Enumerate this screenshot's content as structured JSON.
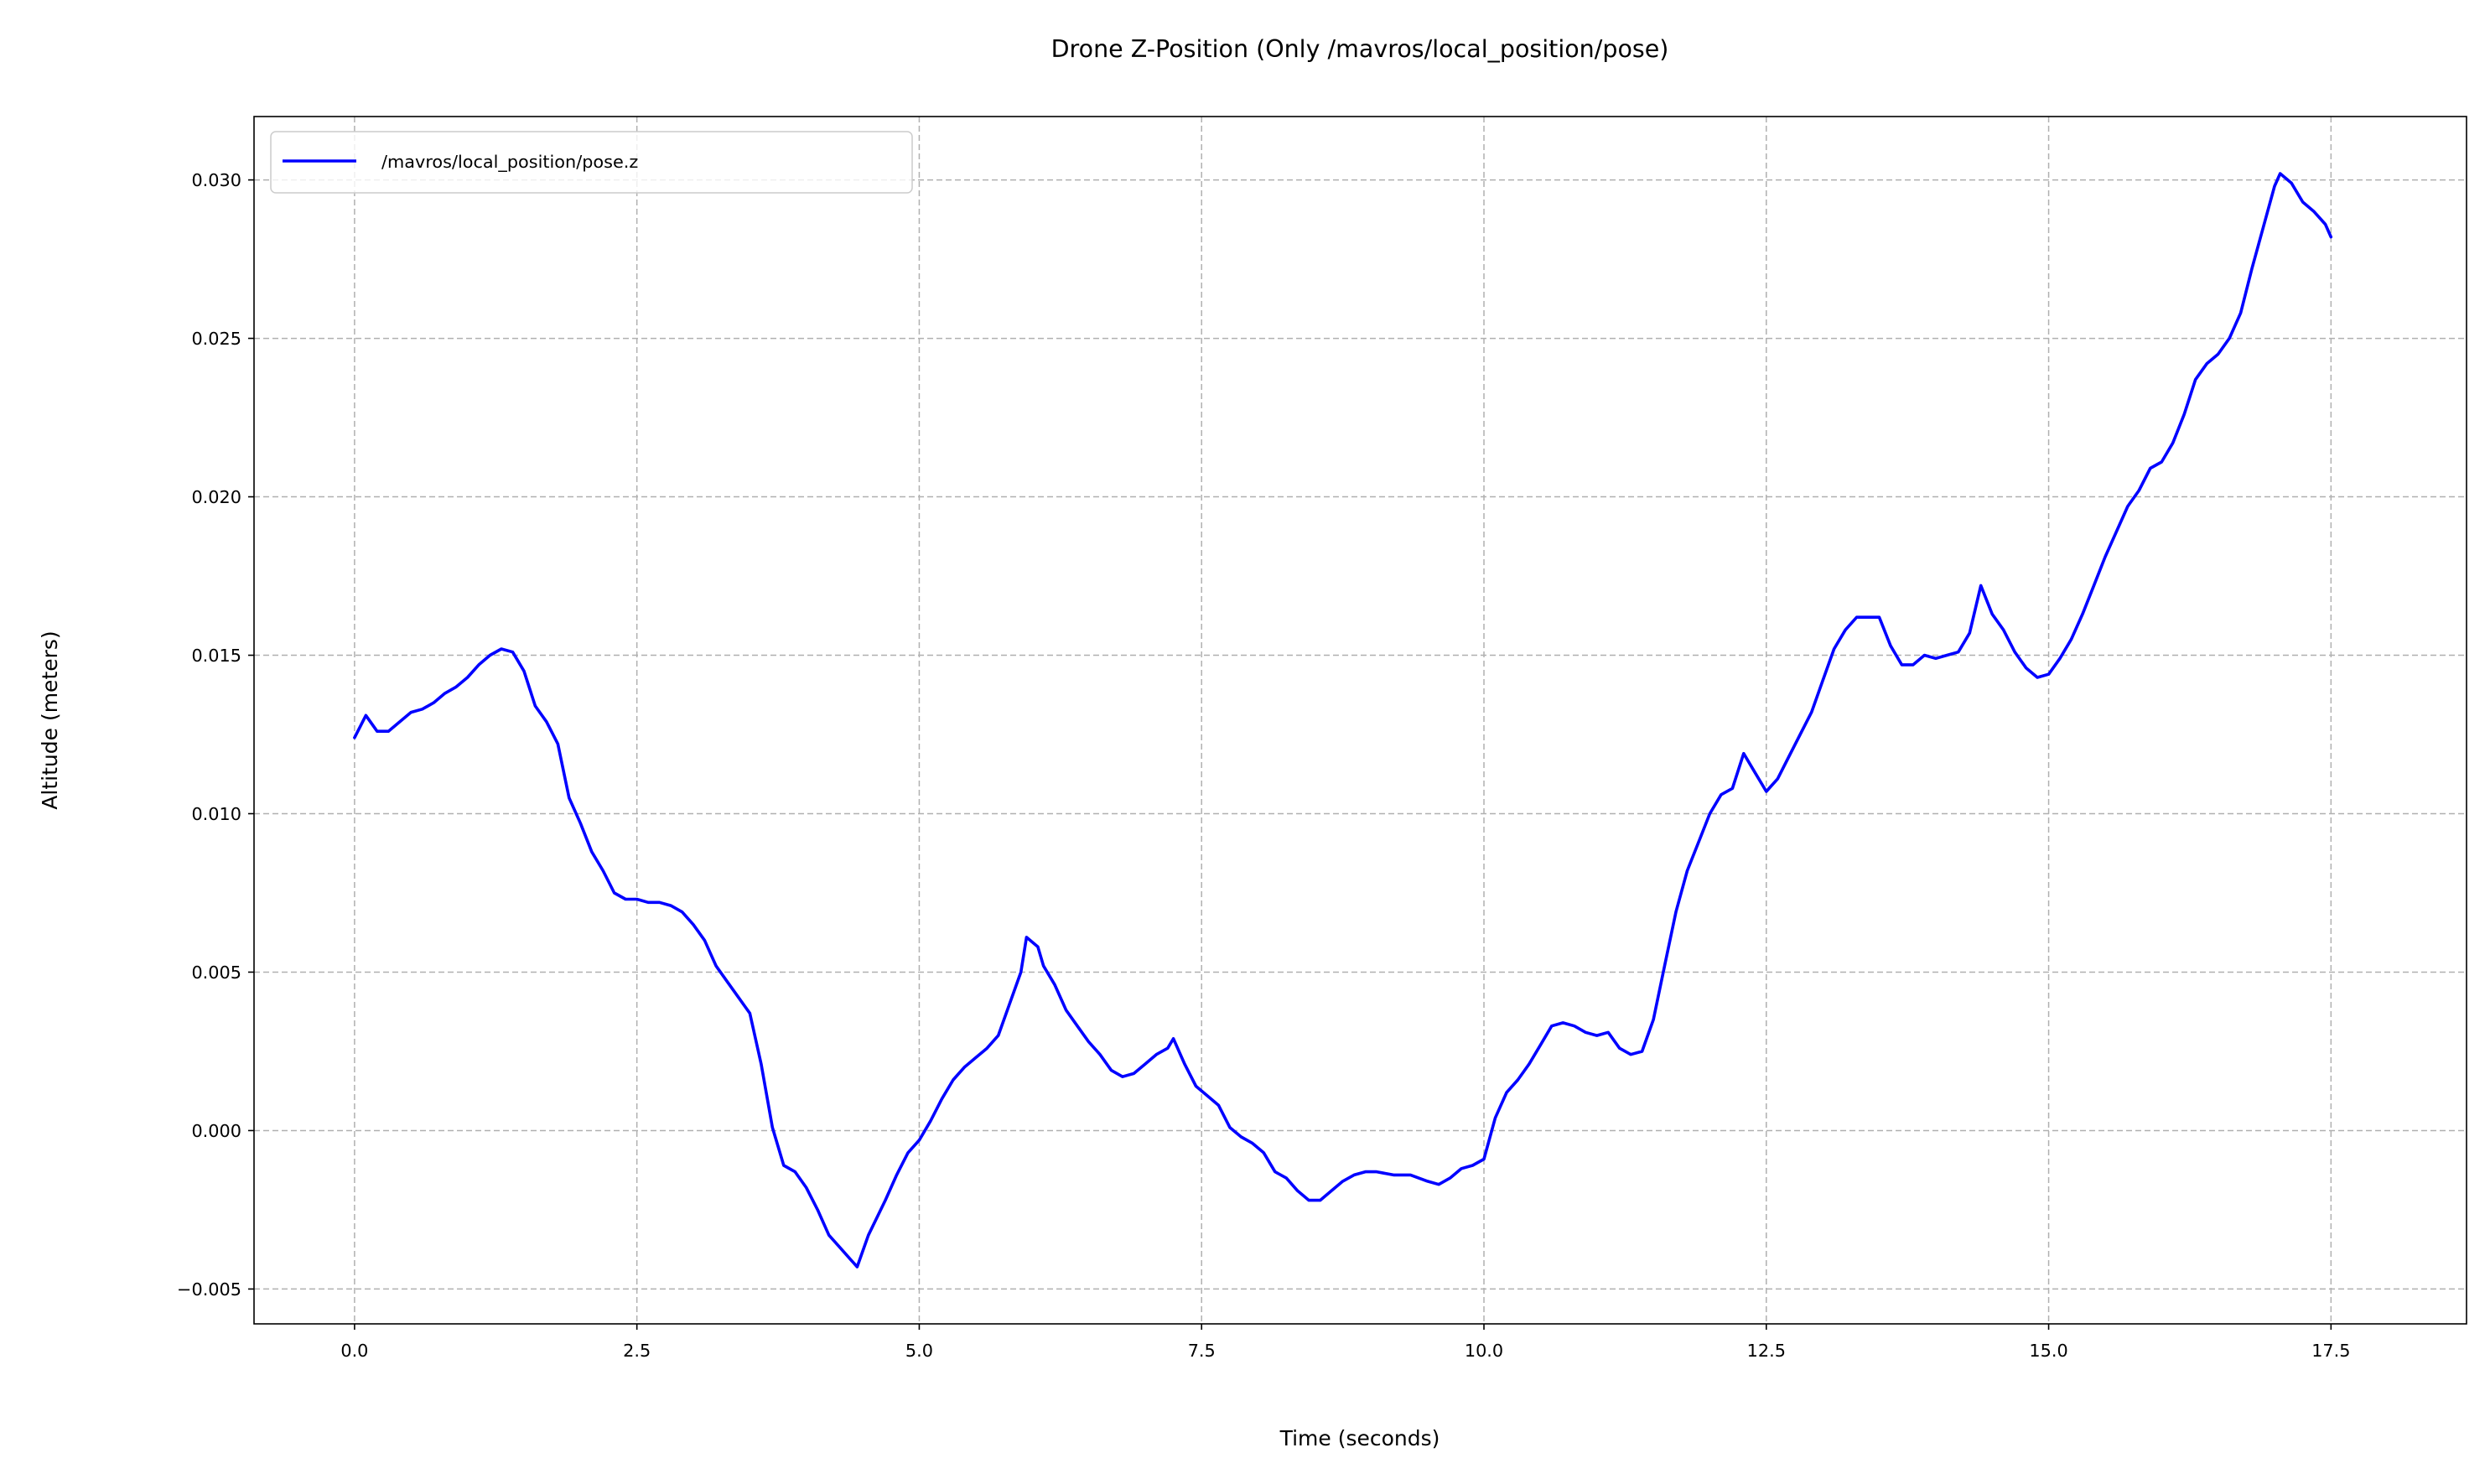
{
  "chart_data": {
    "type": "line",
    "title": "Drone Z-Position (Only /mavros/local_position/pose)",
    "xlabel": "Time (seconds)",
    "ylabel": "Altitude (meters)",
    "xlim": [
      -0.89,
      18.7
    ],
    "ylim": [
      -0.0061,
      0.032
    ],
    "xticks": [
      0.0,
      2.5,
      5.0,
      7.5,
      10.0,
      12.5,
      15.0,
      17.5
    ],
    "xtick_labels": [
      "0.0",
      "2.5",
      "5.0",
      "7.5",
      "10.0",
      "12.5",
      "15.0",
      "17.5"
    ],
    "yticks": [
      -0.005,
      0.0,
      0.005,
      0.01,
      0.015,
      0.02,
      0.025,
      0.03
    ],
    "ytick_labels": [
      "−0.005",
      "0.000",
      "0.005",
      "0.010",
      "0.015",
      "0.020",
      "0.025",
      "0.030"
    ],
    "grid": true,
    "legend_position": "top-left",
    "series": [
      {
        "name": "/mavros/local_position/pose.z",
        "color": "#0000ff",
        "points": [
          [
            0.0,
            0.0124
          ],
          [
            0.1,
            0.0131
          ],
          [
            0.2,
            0.0126
          ],
          [
            0.3,
            0.0126
          ],
          [
            0.4,
            0.0129
          ],
          [
            0.5,
            0.0132
          ],
          [
            0.6,
            0.0133
          ],
          [
            0.7,
            0.0135
          ],
          [
            0.8,
            0.0138
          ],
          [
            0.9,
            0.014
          ],
          [
            1.0,
            0.0143
          ],
          [
            1.1,
            0.0147
          ],
          [
            1.2,
            0.015
          ],
          [
            1.3,
            0.0152
          ],
          [
            1.4,
            0.0151
          ],
          [
            1.5,
            0.0145
          ],
          [
            1.6,
            0.0134
          ],
          [
            1.7,
            0.0129
          ],
          [
            1.8,
            0.0122
          ],
          [
            1.9,
            0.0105
          ],
          [
            2.0,
            0.0097
          ],
          [
            2.1,
            0.0088
          ],
          [
            2.2,
            0.0082
          ],
          [
            2.3,
            0.0075
          ],
          [
            2.4,
            0.0073
          ],
          [
            2.5,
            0.0073
          ],
          [
            2.6,
            0.0072
          ],
          [
            2.7,
            0.0072
          ],
          [
            2.8,
            0.0071
          ],
          [
            2.9,
            0.0069
          ],
          [
            3.0,
            0.0065
          ],
          [
            3.1,
            0.006
          ],
          [
            3.2,
            0.0052
          ],
          [
            3.3,
            0.0047
          ],
          [
            3.4,
            0.0042
          ],
          [
            3.5,
            0.0037
          ],
          [
            3.6,
            0.0021
          ],
          [
            3.7,
            0.0001
          ],
          [
            3.8,
            -0.0011
          ],
          [
            3.9,
            -0.0013
          ],
          [
            4.0,
            -0.0018
          ],
          [
            4.1,
            -0.0025
          ],
          [
            4.2,
            -0.0033
          ],
          [
            4.3,
            -0.0037
          ],
          [
            4.4,
            -0.0041
          ],
          [
            4.45,
            -0.0043
          ],
          [
            4.55,
            -0.0033
          ],
          [
            4.7,
            -0.0022
          ],
          [
            4.8,
            -0.0014
          ],
          [
            4.9,
            -0.0007
          ],
          [
            5.0,
            -0.0003
          ],
          [
            5.1,
            0.0003
          ],
          [
            5.2,
            0.001
          ],
          [
            5.3,
            0.0016
          ],
          [
            5.4,
            0.002
          ],
          [
            5.5,
            0.0023
          ],
          [
            5.6,
            0.0026
          ],
          [
            5.7,
            0.003
          ],
          [
            5.8,
            0.004
          ],
          [
            5.9,
            0.005
          ],
          [
            5.95,
            0.0061
          ],
          [
            6.05,
            0.0058
          ],
          [
            6.1,
            0.0052
          ],
          [
            6.2,
            0.0046
          ],
          [
            6.3,
            0.0038
          ],
          [
            6.4,
            0.0033
          ],
          [
            6.5,
            0.0028
          ],
          [
            6.6,
            0.0024
          ],
          [
            6.7,
            0.0019
          ],
          [
            6.8,
            0.0017
          ],
          [
            6.9,
            0.0018
          ],
          [
            7.0,
            0.0021
          ],
          [
            7.1,
            0.0024
          ],
          [
            7.2,
            0.0026
          ],
          [
            7.25,
            0.0029
          ],
          [
            7.35,
            0.0021
          ],
          [
            7.45,
            0.0014
          ],
          [
            7.55,
            0.0011
          ],
          [
            7.65,
            0.0008
          ],
          [
            7.75,
            0.0001
          ],
          [
            7.85,
            -0.0002
          ],
          [
            7.95,
            -0.0004
          ],
          [
            8.05,
            -0.0007
          ],
          [
            8.15,
            -0.0013
          ],
          [
            8.25,
            -0.0015
          ],
          [
            8.35,
            -0.0019
          ],
          [
            8.45,
            -0.0022
          ],
          [
            8.55,
            -0.0022
          ],
          [
            8.65,
            -0.0019
          ],
          [
            8.75,
            -0.0016
          ],
          [
            8.85,
            -0.0014
          ],
          [
            8.95,
            -0.0013
          ],
          [
            9.05,
            -0.0013
          ],
          [
            9.2,
            -0.0014
          ],
          [
            9.35,
            -0.0014
          ],
          [
            9.5,
            -0.0016
          ],
          [
            9.6,
            -0.0017
          ],
          [
            9.7,
            -0.0015
          ],
          [
            9.8,
            -0.0012
          ],
          [
            9.9,
            -0.0011
          ],
          [
            10.0,
            -0.0009
          ],
          [
            10.1,
            0.0004
          ],
          [
            10.2,
            0.0012
          ],
          [
            10.3,
            0.0016
          ],
          [
            10.4,
            0.0021
          ],
          [
            10.5,
            0.0027
          ],
          [
            10.6,
            0.0033
          ],
          [
            10.7,
            0.0034
          ],
          [
            10.8,
            0.0033
          ],
          [
            10.9,
            0.0031
          ],
          [
            11.0,
            0.003
          ],
          [
            11.1,
            0.0031
          ],
          [
            11.2,
            0.0026
          ],
          [
            11.3,
            0.0024
          ],
          [
            11.4,
            0.0025
          ],
          [
            11.5,
            0.0035
          ],
          [
            11.6,
            0.0052
          ],
          [
            11.7,
            0.0069
          ],
          [
            11.8,
            0.0082
          ],
          [
            11.9,
            0.0091
          ],
          [
            12.0,
            0.01
          ],
          [
            12.1,
            0.0106
          ],
          [
            12.2,
            0.0108
          ],
          [
            12.3,
            0.0119
          ],
          [
            12.4,
            0.0113
          ],
          [
            12.5,
            0.0107
          ],
          [
            12.6,
            0.0111
          ],
          [
            12.7,
            0.0118
          ],
          [
            12.8,
            0.0125
          ],
          [
            12.9,
            0.0132
          ],
          [
            13.0,
            0.0142
          ],
          [
            13.1,
            0.0152
          ],
          [
            13.2,
            0.0158
          ],
          [
            13.3,
            0.0162
          ],
          [
            13.4,
            0.0162
          ],
          [
            13.5,
            0.0162
          ],
          [
            13.6,
            0.0153
          ],
          [
            13.7,
            0.0147
          ],
          [
            13.8,
            0.0147
          ],
          [
            13.9,
            0.015
          ],
          [
            14.0,
            0.0149
          ],
          [
            14.1,
            0.015
          ],
          [
            14.2,
            0.0151
          ],
          [
            14.3,
            0.0157
          ],
          [
            14.4,
            0.0172
          ],
          [
            14.5,
            0.0163
          ],
          [
            14.6,
            0.0158
          ],
          [
            14.7,
            0.0151
          ],
          [
            14.8,
            0.0146
          ],
          [
            14.9,
            0.0143
          ],
          [
            15.0,
            0.0144
          ],
          [
            15.1,
            0.0149
          ],
          [
            15.2,
            0.0155
          ],
          [
            15.3,
            0.0163
          ],
          [
            15.4,
            0.0172
          ],
          [
            15.5,
            0.0181
          ],
          [
            15.6,
            0.0189
          ],
          [
            15.7,
            0.0197
          ],
          [
            15.8,
            0.0202
          ],
          [
            15.9,
            0.0209
          ],
          [
            16.0,
            0.0211
          ],
          [
            16.1,
            0.0217
          ],
          [
            16.2,
            0.0226
          ],
          [
            16.3,
            0.0237
          ],
          [
            16.4,
            0.0242
          ],
          [
            16.5,
            0.0245
          ],
          [
            16.6,
            0.025
          ],
          [
            16.7,
            0.0258
          ],
          [
            16.8,
            0.0272
          ],
          [
            16.9,
            0.0285
          ],
          [
            17.0,
            0.0298
          ],
          [
            17.05,
            0.0302
          ],
          [
            17.15,
            0.0299
          ],
          [
            17.25,
            0.0293
          ],
          [
            17.35,
            0.029
          ],
          [
            17.45,
            0.0286
          ],
          [
            17.5,
            0.0282
          ]
        ]
      }
    ]
  }
}
